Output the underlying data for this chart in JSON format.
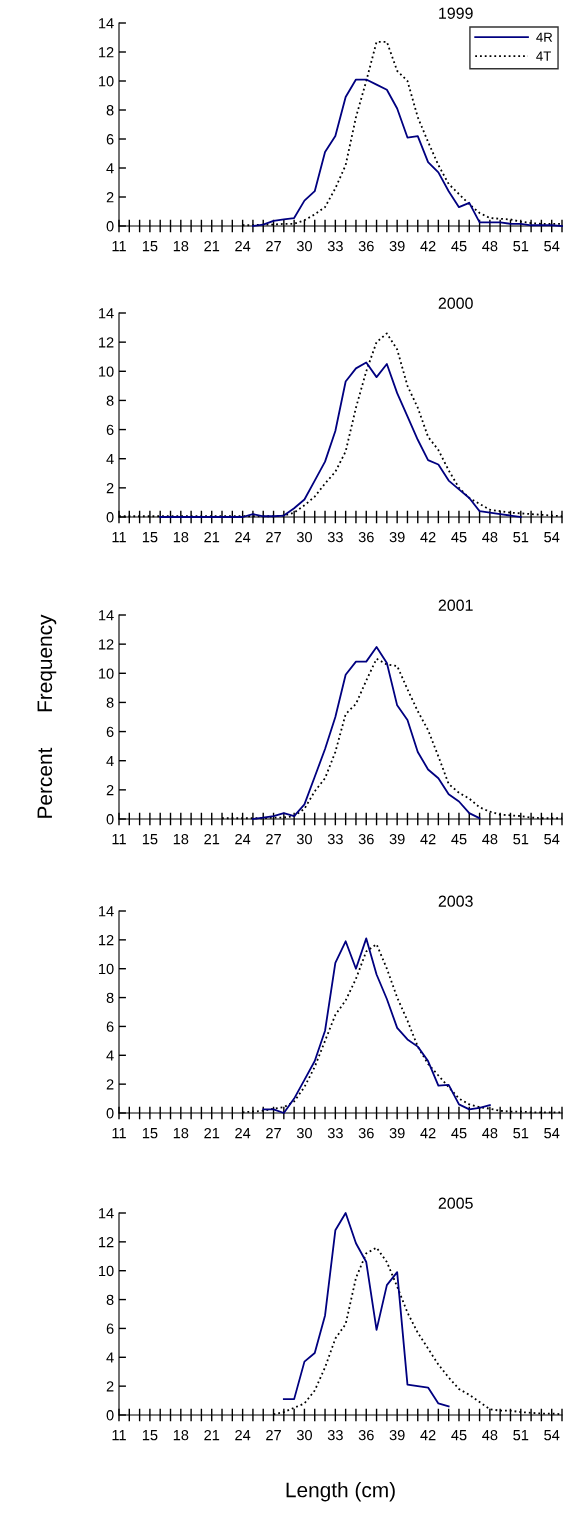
{
  "chart_data": [
    {
      "type": "line",
      "title": "1999",
      "categories": [
        "11",
        null,
        null,
        "15",
        null,
        null,
        "18",
        null,
        null,
        "21",
        null,
        null,
        "24",
        null,
        null,
        "27",
        null,
        null,
        "30",
        null,
        null,
        "33",
        null,
        null,
        "36",
        null,
        null,
        "39",
        null,
        null,
        "42",
        null,
        null,
        "45",
        null,
        null,
        "48",
        null,
        null,
        "51",
        null,
        null,
        "54",
        null
      ],
      "ylim": [
        0,
        14
      ],
      "yticks": [
        0,
        2,
        4,
        6,
        8,
        10,
        12,
        14
      ],
      "grid": false,
      "legend": "top right",
      "marker": "none",
      "series": [
        {
          "name": "4R",
          "color": "#000080",
          "line_style": "solid",
          "values": [
            null,
            null,
            null,
            null,
            null,
            null,
            null,
            null,
            null,
            null,
            null,
            null,
            null,
            0,
            0.1,
            0.35,
            0.45,
            0.55,
            1.75,
            2.4,
            5.1,
            6.2,
            8.9,
            10.1,
            10.1,
            9.75,
            9.4,
            8.1,
            6.1,
            6.2,
            4.4,
            3.7,
            2.4,
            1.3,
            1.6,
            0.25,
            0.25,
            0.25,
            0.15,
            0.15,
            0.05,
            0.05,
            0.05,
            0
          ]
        },
        {
          "name": "4T",
          "color": "#000000",
          "line_style": "dotted",
          "values": [
            null,
            null,
            null,
            null,
            null,
            null,
            null,
            null,
            null,
            null,
            null,
            null,
            0.05,
            0.05,
            0.1,
            0.1,
            0.15,
            0.15,
            0.4,
            0.8,
            1.3,
            2.6,
            4.2,
            7.5,
            10.0,
            12.7,
            12.7,
            10.7,
            10.0,
            7.5,
            5.8,
            4.2,
            2.9,
            2.2,
            1.5,
            0.9,
            0.55,
            0.5,
            0.45,
            0.3,
            0.2,
            0.15,
            0.15,
            0.15
          ]
        }
      ]
    },
    {
      "type": "line",
      "title": "2000",
      "categories": [
        "11",
        null,
        null,
        "15",
        null,
        null,
        "18",
        null,
        null,
        "21",
        null,
        null,
        "24",
        null,
        null,
        "27",
        null,
        null,
        "30",
        null,
        null,
        "33",
        null,
        null,
        "36",
        null,
        null,
        "39",
        null,
        null,
        "42",
        null,
        null,
        "45",
        null,
        null,
        "48",
        null,
        null,
        "51",
        null,
        null,
        "54",
        null
      ],
      "ylim": [
        0,
        14
      ],
      "yticks": [
        0,
        2,
        4,
        6,
        8,
        10,
        12,
        14
      ],
      "grid": false,
      "marker": "none",
      "series": [
        {
          "color": "#000080",
          "line_style": "solid",
          "values": [
            null,
            null,
            null,
            null,
            0,
            0,
            0,
            0,
            0,
            0,
            0,
            0,
            0,
            0.2,
            0.05,
            0.05,
            0.1,
            0.6,
            1.2,
            2.5,
            3.8,
            5.9,
            9.3,
            10.2,
            10.6,
            9.6,
            10.5,
            8.5,
            6.9,
            5.3,
            3.9,
            3.6,
            2.5,
            1.9,
            1.3,
            0.4,
            0.3,
            0.2,
            0.1,
            0.0,
            null,
            null,
            null,
            null
          ]
        },
        {
          "color": "#000000",
          "line_style": "dotted",
          "values": [
            0.05,
            0.05,
            0.05,
            0.05,
            0.05,
            0.05,
            0.05,
            0.05,
            0.05,
            0.05,
            0.05,
            0.05,
            0.05,
            0.05,
            0.05,
            0.05,
            0.1,
            0.3,
            0.8,
            1.4,
            2.3,
            3.1,
            4.5,
            7.5,
            10.0,
            12.0,
            12.6,
            11.5,
            9.0,
            7.5,
            5.5,
            4.6,
            3.2,
            2.0,
            1.3,
            0.9,
            0.5,
            0.4,
            0.3,
            0.25,
            0.2,
            0.15,
            0.1,
            0.05
          ]
        }
      ]
    },
    {
      "type": "line",
      "title": "2001",
      "ylabel": "Percent      Frequency",
      "categories": [
        "11",
        null,
        null,
        "15",
        null,
        null,
        "18",
        null,
        null,
        "21",
        null,
        null,
        "24",
        null,
        null,
        "27",
        null,
        null,
        "30",
        null,
        null,
        "33",
        null,
        null,
        "36",
        null,
        null,
        "39",
        null,
        null,
        "42",
        null,
        null,
        "45",
        null,
        null,
        "48",
        null,
        null,
        "51",
        null,
        null,
        "54",
        null
      ],
      "ylim": [
        0,
        14
      ],
      "yticks": [
        0,
        2,
        4,
        6,
        8,
        10,
        12,
        14
      ],
      "grid": false,
      "marker": "none",
      "series": [
        {
          "color": "#000080",
          "line_style": "solid",
          "values": [
            null,
            null,
            null,
            null,
            null,
            null,
            null,
            null,
            null,
            null,
            null,
            null,
            null,
            0.0,
            0.1,
            0.2,
            0.4,
            0.2,
            1.0,
            2.9,
            4.8,
            7.0,
            9.9,
            10.8,
            10.8,
            11.8,
            10.7,
            7.8,
            6.8,
            4.6,
            3.4,
            2.8,
            1.7,
            1.2,
            0.4,
            0.05,
            null,
            null,
            null,
            null,
            null,
            null,
            null,
            null
          ]
        },
        {
          "color": "#000000",
          "line_style": "dotted",
          "values": [
            null,
            null,
            null,
            null,
            null,
            null,
            null,
            null,
            null,
            null,
            0.05,
            0.05,
            0.05,
            0.05,
            0.05,
            0.1,
            0.1,
            0.2,
            0.7,
            1.9,
            2.8,
            4.6,
            7.2,
            7.9,
            9.5,
            11.0,
            10.6,
            10.5,
            8.9,
            7.4,
            6.1,
            4.3,
            2.4,
            1.8,
            1.4,
            0.8,
            0.5,
            0.3,
            0.25,
            0.2,
            0.1,
            0.05,
            0.05,
            0.05
          ]
        }
      ]
    },
    {
      "type": "line",
      "title": "2003",
      "categories": [
        "11",
        null,
        null,
        "15",
        null,
        null,
        "18",
        null,
        null,
        "21",
        null,
        null,
        "24",
        null,
        null,
        "27",
        null,
        null,
        "30",
        null,
        null,
        "33",
        null,
        null,
        "36",
        null,
        null,
        "39",
        null,
        null,
        "42",
        null,
        null,
        "45",
        null,
        null,
        "48",
        null,
        null,
        "51",
        null,
        null,
        "54",
        null
      ],
      "ylim": [
        0,
        14
      ],
      "yticks": [
        0,
        2,
        4,
        6,
        8,
        10,
        12,
        14
      ],
      "grid": false,
      "marker": "none",
      "series": [
        {
          "color": "#000080",
          "line_style": "solid",
          "values": [
            null,
            null,
            null,
            null,
            null,
            null,
            null,
            null,
            null,
            null,
            null,
            null,
            null,
            null,
            0.25,
            0.25,
            0.0,
            1.0,
            2.3,
            3.6,
            5.7,
            10.4,
            11.9,
            10.0,
            12.1,
            9.6,
            7.9,
            5.9,
            5.1,
            4.6,
            3.6,
            1.9,
            1.95,
            0.6,
            0.25,
            0.35,
            0.55,
            null,
            null,
            null,
            null,
            null,
            null,
            null
          ]
        },
        {
          "color": "#000000",
          "line_style": "dotted",
          "values": [
            null,
            null,
            null,
            null,
            null,
            null,
            null,
            null,
            null,
            null,
            null,
            null,
            0.05,
            0.1,
            0.15,
            0.3,
            0.4,
            0.8,
            1.8,
            3.2,
            5.0,
            6.8,
            7.8,
            9.3,
            11.2,
            11.7,
            10.0,
            8.0,
            6.4,
            4.6,
            3.4,
            2.6,
            1.8,
            1.0,
            0.6,
            0.4,
            0.3,
            0.15,
            0.1,
            0.1,
            0.05,
            0.05,
            0.05,
            0.05
          ]
        }
      ]
    },
    {
      "type": "line",
      "title": "2005",
      "xlabel": "Length (cm)",
      "categories": [
        "11",
        null,
        null,
        "15",
        null,
        null,
        "18",
        null,
        null,
        "21",
        null,
        null,
        "24",
        null,
        null,
        "27",
        null,
        null,
        "30",
        null,
        null,
        "33",
        null,
        null,
        "36",
        null,
        null,
        "39",
        null,
        null,
        "42",
        null,
        null,
        "45",
        null,
        null,
        "48",
        null,
        null,
        "51",
        null,
        null,
        "54",
        null
      ],
      "ylim": [
        0,
        14
      ],
      "yticks": [
        0,
        2,
        4,
        6,
        8,
        10,
        12,
        14
      ],
      "grid": false,
      "marker": "none",
      "series": [
        {
          "color": "#000080",
          "line_style": "solid",
          "values": [
            null,
            null,
            null,
            null,
            null,
            null,
            null,
            null,
            null,
            null,
            null,
            null,
            null,
            null,
            null,
            null,
            1.1,
            1.1,
            3.7,
            4.3,
            6.9,
            12.8,
            14.0,
            11.9,
            10.6,
            5.9,
            9.0,
            9.9,
            2.1,
            2.0,
            1.9,
            0.8,
            0.6,
            null,
            null,
            null,
            null,
            null,
            null,
            null,
            null,
            null,
            null,
            null
          ]
        },
        {
          "color": "#000000",
          "line_style": "dotted",
          "values": [
            null,
            null,
            null,
            null,
            null,
            null,
            null,
            null,
            null,
            null,
            null,
            null,
            null,
            null,
            null,
            0.05,
            0.2,
            0.5,
            0.8,
            1.7,
            3.3,
            5.3,
            6.3,
            9.5,
            11.2,
            11.6,
            10.6,
            8.9,
            7.1,
            5.7,
            4.6,
            3.5,
            2.6,
            1.8,
            1.4,
            0.9,
            0.4,
            0.3,
            0.3,
            0.2,
            0.15,
            0.1,
            0.1,
            0.05
          ]
        }
      ]
    }
  ]
}
